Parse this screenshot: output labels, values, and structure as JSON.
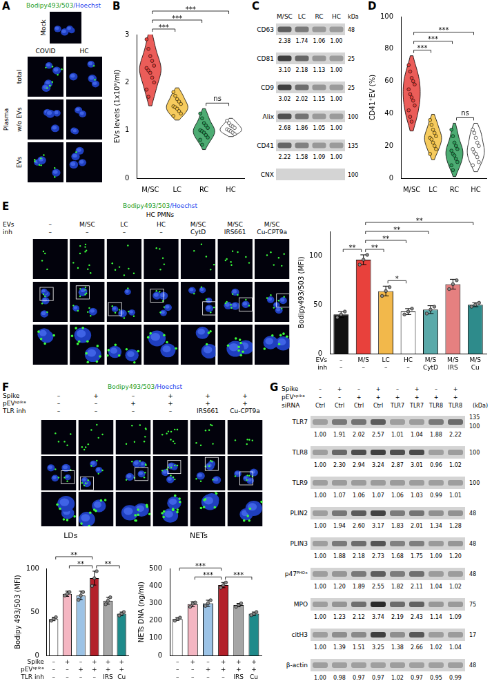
{
  "chart_data": [
    {
      "panel": "B",
      "type": "violin",
      "categories": [
        "M/SC",
        "LC",
        "RC",
        "HC"
      ],
      "colors": [
        "#e8413c",
        "#f5c242",
        "#2e9e5b",
        "#ffffff"
      ],
      "values": [
        [
          2.9,
          2.7,
          2.55,
          2.45,
          2.35,
          2.3,
          2.25,
          2.2,
          2.1,
          2.0,
          1.85,
          1.7
        ],
        [
          1.8,
          1.72,
          1.65,
          1.6,
          1.55,
          1.5,
          1.48,
          1.45,
          1.4,
          1.35,
          1.3
        ],
        [
          1.35,
          1.25,
          1.15,
          1.1,
          1.05,
          1.0,
          0.98,
          0.95,
          0.9,
          0.85,
          0.8,
          0.7
        ],
        [
          1.2,
          1.15,
          1.1,
          1.08,
          1.05,
          1.02,
          1.0,
          0.98,
          0.95,
          0.92
        ]
      ],
      "ylabel": "EVs levels (1x10⁹/ml)",
      "ylim": [
        0,
        3
      ],
      "yticks": [
        0,
        1,
        2,
        3
      ],
      "grid": false,
      "annotations": [
        {
          "from": 0,
          "to": 1,
          "text": "***"
        },
        {
          "from": 0,
          "to": 2,
          "text": "***"
        },
        {
          "from": 0,
          "to": 3,
          "text": "***"
        },
        {
          "from": 2,
          "to": 3,
          "text": "ns"
        }
      ]
    },
    {
      "panel": "D",
      "type": "violin",
      "categories": [
        "M/SC",
        "LC",
        "RC",
        "HC"
      ],
      "colors": [
        "#e8413c",
        "#f5c242",
        "#2e9e5b",
        "#ffffff"
      ],
      "values": [
        [
          70,
          66,
          62,
          60,
          58,
          55,
          52,
          50,
          48,
          45,
          42,
          38,
          35
        ],
        [
          36,
          33,
          30,
          28,
          26,
          25,
          24,
          22,
          20,
          18,
          15
        ],
        [
          30,
          26,
          22,
          20,
          18,
          17,
          15,
          14,
          12,
          10,
          8,
          5
        ],
        [
          30,
          28,
          25,
          22,
          20,
          18,
          16,
          15,
          13,
          10,
          8
        ]
      ],
      "ylabel": "CD41⁺EV (%)",
      "ylim": [
        0,
        100
      ],
      "yticks": [
        0,
        20,
        40,
        60,
        80,
        100
      ],
      "grid": false,
      "annotations": [
        {
          "from": 0,
          "to": 1,
          "text": "***"
        },
        {
          "from": 0,
          "to": 2,
          "text": "***"
        },
        {
          "from": 0,
          "to": 3,
          "text": "***"
        },
        {
          "from": 2,
          "to": 3,
          "text": "ns"
        }
      ]
    },
    {
      "type": "bar",
      "categories": [
        [
          "–",
          "–"
        ],
        [
          "M/S",
          "–"
        ],
        [
          "LC",
          "–"
        ],
        [
          "HC",
          "–"
        ],
        [
          "M/S",
          "CytD"
        ],
        [
          "M/S",
          "IRS"
        ],
        [
          "M/S",
          "Cu"
        ]
      ],
      "category_rows": [
        "EVs",
        "inh"
      ],
      "values": [
        40,
        96,
        64,
        43,
        45,
        71,
        50
      ],
      "errors": [
        3,
        5,
        5,
        3,
        4,
        5,
        2
      ],
      "points": [
        [
          37,
          40,
          43
        ],
        [
          91,
          96,
          101
        ],
        [
          59,
          64,
          68
        ],
        [
          40,
          43,
          46
        ],
        [
          41,
          45,
          48
        ],
        [
          66,
          71,
          75
        ],
        [
          48,
          50,
          52
        ]
      ],
      "colors": [
        "#111111",
        "#e8413c",
        "#f2b84b",
        "#ffffff",
        "#5aa9a9",
        "#e58080",
        "#2e8b8b"
      ],
      "ylabel": "Bodipy493/503 (MFI)",
      "ylim": [
        0,
        125
      ],
      "yticks": [
        0,
        50,
        100
      ],
      "grid": false,
      "annotations": [
        {
          "from": 0,
          "to": 1,
          "text": "**"
        },
        {
          "from": 1,
          "to": 2,
          "text": "**"
        },
        {
          "from": 2,
          "to": 3,
          "text": "*"
        },
        {
          "from": 1,
          "to": 3,
          "text": "**"
        },
        {
          "from": 1,
          "to": 4,
          "text": "**"
        },
        {
          "from": 1,
          "to": 6,
          "text": "**"
        }
      ]
    },
    {
      "type": "bar",
      "title": "LDs",
      "categories": [
        [
          "–",
          "–",
          "–"
        ],
        [
          "+",
          "–",
          "–"
        ],
        [
          "–",
          "+",
          "–"
        ],
        [
          "+",
          "+",
          "–"
        ],
        [
          "+",
          "+",
          "IRS"
        ],
        [
          "+",
          "+",
          "Cu"
        ]
      ],
      "category_rows": [
        "Spike",
        "pEVˢᵖⁱᵏᵉ",
        "TLR inh"
      ],
      "values": [
        42,
        71,
        69,
        89,
        63,
        48
      ],
      "errors": [
        2,
        3,
        5,
        8,
        4,
        2
      ],
      "points": [
        [
          40,
          42,
          44
        ],
        [
          69,
          71,
          73
        ],
        [
          64,
          69,
          73
        ],
        [
          80,
          89,
          97
        ],
        [
          59,
          63,
          67
        ],
        [
          46,
          48,
          50
        ]
      ],
      "colors": [
        "#ffffff",
        "#f4b6c2",
        "#9cc3e6",
        "#b3202a",
        "#a6a6a6",
        "#1f8a8a"
      ],
      "ylabel": "Bodipy 493/503 (MFI)",
      "ylim": [
        0,
        100
      ],
      "yticks": [
        0,
        50,
        100
      ],
      "grid": false,
      "annotations": [
        {
          "from": 0,
          "to": 3,
          "text": "**"
        },
        {
          "from": 1,
          "to": 3,
          "text": "**"
        },
        {
          "from": 3,
          "to": 5,
          "text": "**"
        }
      ]
    },
    {
      "type": "bar",
      "title": "NETs",
      "categories": [
        [
          "–",
          "–",
          "–"
        ],
        [
          "+",
          "–",
          "–"
        ],
        [
          "–",
          "+",
          "–"
        ],
        [
          "+",
          "+",
          "–"
        ],
        [
          "+",
          "+",
          "IRS"
        ],
        [
          "+",
          "+",
          "Cu"
        ]
      ],
      "values": [
        210,
        295,
        300,
        405,
        290,
        240
      ],
      "errors": [
        8,
        15,
        18,
        15,
        10,
        10
      ],
      "points": [
        [
          200,
          210,
          218
        ],
        [
          280,
          298,
          305
        ],
        [
          285,
          300,
          318
        ],
        [
          390,
          405,
          420
        ],
        [
          280,
          290,
          300
        ],
        [
          232,
          240,
          250
        ]
      ],
      "colors": [
        "#ffffff",
        "#f4b6c2",
        "#9cc3e6",
        "#b3202a",
        "#a6a6a6",
        "#1f8a8a"
      ],
      "ylabel": "NETs DNA (ng/ml)",
      "ylim": [
        0,
        500
      ],
      "yticks": [
        0,
        100,
        200,
        300,
        400,
        500
      ],
      "grid": false,
      "annotations": [
        {
          "from": 0,
          "to": 3,
          "text": "***"
        },
        {
          "from": 1,
          "to": 3,
          "text": "***"
        },
        {
          "from": 3,
          "to": 5,
          "text": "***"
        }
      ]
    }
  ],
  "images": {
    "A": {
      "panel": "A",
      "stain": [
        "Bodipy493/503",
        "/Hoechst"
      ],
      "mock": "Mock",
      "row_group": "Plasma",
      "columns": [
        "COVID",
        "HC"
      ],
      "rows": [
        "total",
        "w/o EVs",
        "EVs"
      ]
    },
    "E": {
      "panel": "E",
      "stain": [
        "Bodipy493/503",
        "/Hoechst"
      ],
      "title": "HC PMNs",
      "header_rows": [
        {
          "name": "EVs",
          "labels": [
            "–",
            "M/SC",
            "LC",
            "HC",
            "M/SC",
            "M/SC",
            "M/SC"
          ]
        },
        {
          "name": "inh",
          "labels": [
            "–",
            "–",
            "–",
            "–",
            "CytD",
            "IRS661",
            "Cu-CPT9a"
          ]
        }
      ]
    },
    "F": {
      "panel": "F",
      "stain": [
        "Bodipy493/503",
        "/Hoechst"
      ],
      "header_rows": [
        {
          "name": "Spike",
          "labels": [
            "–",
            "+",
            "–",
            "+",
            "+",
            "+"
          ]
        },
        {
          "name": "pEVˢᵖⁱᵏᵉ",
          "labels": [
            "–",
            "–",
            "+",
            "+",
            "+",
            "+"
          ]
        },
        {
          "name": "TLR inh",
          "labels": [
            "–",
            "–",
            "–",
            "–",
            "IRS661",
            "Cu-CPT9a"
          ]
        }
      ]
    }
  },
  "blots": {
    "C": {
      "panel": "C",
      "columns": [
        "M/SC",
        "LC",
        "RC",
        "HC"
      ],
      "unit": "kDa",
      "rows": [
        {
          "name": "CD63",
          "kda": [
            "48"
          ],
          "values": [
            "2.38",
            "1.74",
            "1.06",
            "1.00"
          ]
        },
        {
          "name": "CD81",
          "kda": [
            "25"
          ],
          "values": [
            "3.10",
            "2.18",
            "1.13",
            "1.00"
          ]
        },
        {
          "name": "CD9",
          "kda": [
            "25"
          ],
          "values": [
            "3.02",
            "2.02",
            "1.15",
            "1.00"
          ]
        },
        {
          "name": "Alix",
          "kda": [
            "100"
          ],
          "values": [
            "2.68",
            "1.86",
            "1.05",
            "1.00"
          ]
        },
        {
          "name": "CD41",
          "kda": [
            "135"
          ],
          "values": [
            "2.22",
            "1.58",
            "1.09",
            "1.00"
          ]
        },
        {
          "name": "CNX",
          "kda": [
            "100"
          ],
          "values": []
        }
      ]
    },
    "G": {
      "panel": "G",
      "unit": "(kDa)",
      "header_rows": [
        {
          "name": "Spike",
          "labels": [
            "–",
            "+",
            "–",
            "+",
            "–",
            "+",
            "–",
            "+"
          ]
        },
        {
          "name": "pEVˢᵖⁱᵏᵉ",
          "labels": [
            "–",
            "–",
            "+",
            "+",
            "+",
            "+",
            "+",
            "+"
          ]
        },
        {
          "name": "siRNA",
          "labels": [
            "Ctrl",
            "Ctrl",
            "Ctrl",
            "Ctrl",
            "TLR7",
            "TLR7",
            "TLR8",
            "TLR8"
          ]
        }
      ],
      "rows": [
        {
          "name": "TLR7",
          "kda": [
            "135",
            "100"
          ],
          "values": [
            "1.00",
            "1.91",
            "2.02",
            "2.57",
            "1.01",
            "1.04",
            "1.88",
            "2.22"
          ]
        },
        {
          "name": "TLR8",
          "kda": [
            "100"
          ],
          "values": [
            "1.00",
            "2.30",
            "2.94",
            "3.24",
            "2.87",
            "3.01",
            "0.96",
            "1.02"
          ]
        },
        {
          "name": "TLR9",
          "kda": [
            "100"
          ],
          "values": [
            "1.00",
            "1.07",
            "1.06",
            "1.07",
            "1.06",
            "1.03",
            "0.99",
            "1.01"
          ]
        },
        {
          "name": "PLIN2",
          "kda": [
            "48"
          ],
          "values": [
            "1.00",
            "1.94",
            "2.60",
            "3.17",
            "1.83",
            "2.01",
            "1.34",
            "1.28"
          ]
        },
        {
          "name": "PLIN3",
          "kda": [
            "48"
          ],
          "values": [
            "1.00",
            "1.88",
            "2.18",
            "2.73",
            "1.68",
            "1.75",
            "1.09",
            "1.20"
          ]
        },
        {
          "name": "p47ᴾᴴᴼˣ",
          "kda": [
            "48"
          ],
          "values": [
            "1.00",
            "1.20",
            "1.89",
            "2.55",
            "1.82",
            "2.11",
            "1.04",
            "1.02"
          ]
        },
        {
          "name": "MPO",
          "kda": [
            "75"
          ],
          "values": [
            "1.00",
            "1.23",
            "2.12",
            "3.74",
            "2.19",
            "2.43",
            "1.14",
            "1.09"
          ]
        },
        {
          "name": "citH3",
          "kda": [
            "17"
          ],
          "values": [
            "1.00",
            "1.39",
            "1.51",
            "3.25",
            "1.38",
            "2.66",
            "1.02",
            "1.04"
          ]
        },
        {
          "name": "β-actin",
          "kda": [
            "48"
          ],
          "values": [
            "1.00",
            "0.98",
            "0.97",
            "0.97",
            "1.02",
            "0.97",
            "0.95",
            "0.99"
          ]
        }
      ]
    }
  }
}
